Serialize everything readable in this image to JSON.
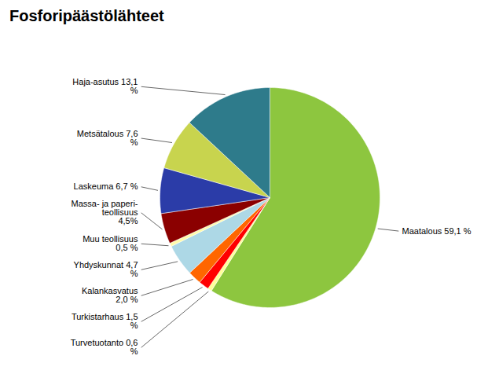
{
  "chart_data": {
    "type": "pie",
    "title": "Fosforipäästölähteet",
    "categories": [
      "Maatalous 59,1 %",
      "Turvetuotanto 0,6\n%",
      "Turkistarhaus 1,5\n%",
      "Kalankasvatus\n2,0 %",
      "Yhdyskunnat 4,7\n%",
      "Muu teollisuus\n0,5 %",
      "Massa- ja paperi-\nteollisuus\n4,5%",
      "Laskeuma 6,7 %",
      "Metsätalous 7,6\n%",
      "Haja-asutus 13,1\n%"
    ],
    "values": [
      59.1,
      0.6,
      1.5,
      2.0,
      4.7,
      0.5,
      4.5,
      6.7,
      7.6,
      13.1
    ],
    "colors": [
      "#8DC63F",
      "#FFFF99",
      "#FF0000",
      "#FF6600",
      "#ADD8E6",
      "#FFFAAA",
      "#8B0000",
      "#2B3CA8",
      "#C8D44E",
      "#2E7B8B"
    ]
  }
}
